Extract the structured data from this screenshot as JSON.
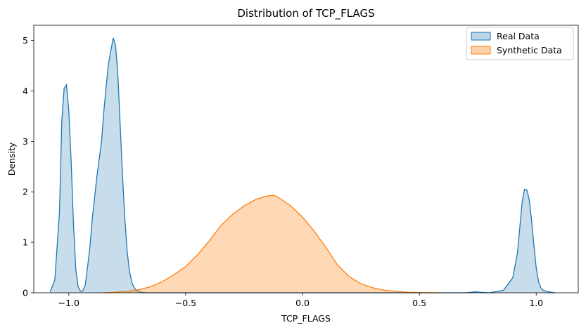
{
  "chart_data": {
    "type": "area",
    "title": "Distribution of TCP_FLAGS",
    "xlabel": "TCP_FLAGS",
    "ylabel": "Density",
    "xlim": [
      -1.15,
      1.18
    ],
    "ylim": [
      0,
      5.3
    ],
    "x_ticks": [
      -1.0,
      -0.5,
      0.0,
      0.5,
      1.0
    ],
    "x_tick_labels": [
      "−1.0",
      "−0.5",
      "0.0",
      "0.5",
      "1.0"
    ],
    "y_ticks": [
      0,
      1,
      2,
      3,
      4,
      5
    ],
    "y_tick_labels": [
      "0",
      "1",
      "2",
      "3",
      "4",
      "5"
    ],
    "grid": false,
    "legend_position": "top-right",
    "series": [
      {
        "name": "Real Data",
        "line_color": "#1f77b4",
        "fill_color": "#1f77b4",
        "fill_opacity": 0.25,
        "x": [
          -1.08,
          -1.06,
          -1.04,
          -1.03,
          -1.02,
          -1.01,
          -1.0,
          -0.99,
          -0.98,
          -0.97,
          -0.96,
          -0.95,
          -0.94,
          -0.93,
          -0.92,
          -0.91,
          -0.9,
          -0.88,
          -0.86,
          -0.85,
          -0.84,
          -0.83,
          -0.82,
          -0.81,
          -0.8,
          -0.79,
          -0.78,
          -0.77,
          -0.76,
          -0.75,
          -0.74,
          -0.73,
          -0.72,
          -0.71,
          -0.7,
          -0.69,
          -0.68,
          -0.67,
          -0.66,
          -0.65,
          -0.64,
          -0.62,
          -0.5,
          -0.3,
          0.0,
          0.3,
          0.6,
          0.7,
          0.74,
          0.76,
          0.8,
          0.86,
          0.9,
          0.92,
          0.93,
          0.94,
          0.95,
          0.96,
          0.97,
          0.98,
          0.99,
          1.0,
          1.01,
          1.02,
          1.03,
          1.05,
          1.08
        ],
        "values": [
          0.02,
          0.25,
          1.6,
          3.4,
          4.05,
          4.12,
          3.6,
          2.6,
          1.35,
          0.45,
          0.12,
          0.03,
          0.04,
          0.15,
          0.5,
          0.9,
          1.45,
          2.3,
          3.0,
          3.6,
          4.1,
          4.55,
          4.8,
          5.05,
          4.9,
          4.3,
          3.3,
          2.3,
          1.45,
          0.8,
          0.42,
          0.2,
          0.1,
          0.05,
          0.02,
          0.01,
          0.005,
          0.0,
          0.0,
          0.0,
          0.0,
          0.0,
          0.0,
          0.0,
          0.0,
          0.0,
          0.0,
          0.0,
          0.02,
          0.01,
          0.0,
          0.05,
          0.3,
          0.8,
          1.3,
          1.8,
          2.05,
          2.04,
          1.85,
          1.45,
          0.95,
          0.5,
          0.22,
          0.1,
          0.05,
          0.02,
          0.0
        ]
      },
      {
        "name": "Synthetic Data",
        "line_color": "#ff7f0e",
        "fill_color": "#ff7f0e",
        "fill_opacity": 0.3,
        "x": [
          -0.85,
          -0.8,
          -0.75,
          -0.7,
          -0.65,
          -0.6,
          -0.55,
          -0.5,
          -0.45,
          -0.4,
          -0.35,
          -0.3,
          -0.25,
          -0.2,
          -0.15,
          -0.12,
          -0.1,
          -0.05,
          0.0,
          0.05,
          0.1,
          0.15,
          0.2,
          0.25,
          0.3,
          0.35,
          0.4,
          0.45,
          0.5,
          0.55,
          0.6
        ],
        "values": [
          0.0,
          0.01,
          0.03,
          0.06,
          0.12,
          0.22,
          0.36,
          0.52,
          0.75,
          1.02,
          1.33,
          1.55,
          1.72,
          1.85,
          1.92,
          1.93,
          1.88,
          1.72,
          1.5,
          1.22,
          0.9,
          0.55,
          0.32,
          0.18,
          0.1,
          0.05,
          0.03,
          0.01,
          0.005,
          0.0,
          0.0
        ]
      }
    ]
  }
}
